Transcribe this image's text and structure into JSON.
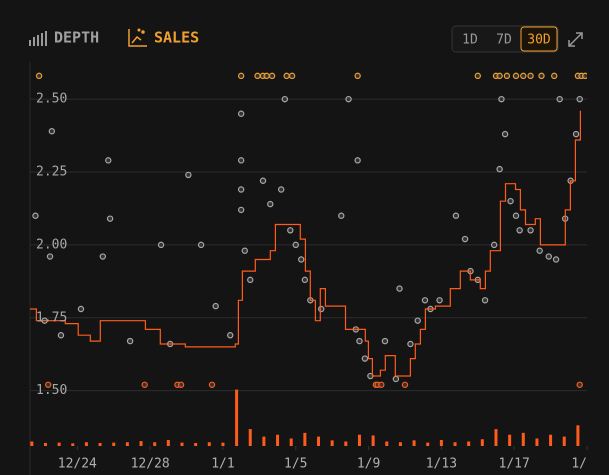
{
  "header": {
    "tabs": [
      "DEPTH",
      "SALES"
    ],
    "active_tab": "SALES",
    "ranges": [
      "1D",
      "7D",
      "30D"
    ],
    "selected_range": "30D"
  },
  "chart_data": {
    "type": "line",
    "xlim": [
      -2.6,
      28
    ],
    "xticks": [
      {
        "value": 0,
        "label": "12/24"
      },
      {
        "value": 4,
        "label": "12/28"
      },
      {
        "value": 8,
        "label": "1/1"
      },
      {
        "value": 12,
        "label": "1/5"
      },
      {
        "value": 16,
        "label": "1/9"
      },
      {
        "value": 20,
        "label": "1/13"
      },
      {
        "value": 24,
        "label": "1/17"
      },
      {
        "value": 28,
        "label": "1/"
      }
    ],
    "ylim": [
      1.31,
      2.6
    ],
    "yticks": [
      {
        "value": 1.5,
        "label": "1.50"
      },
      {
        "value": 1.75,
        "label": "1.75"
      },
      {
        "value": 2.0,
        "label": "2.00"
      },
      {
        "value": 2.25,
        "label": "2.25"
      },
      {
        "value": 2.5,
        "label": "2.50"
      }
    ],
    "y2lim": [
      0,
      100
    ],
    "grid": true,
    "series": [
      {
        "type": "bar",
        "axis": "y2",
        "color": "#ff5b1a",
        "x": [
          -2.5,
          -1.75,
          -1,
          -0.25,
          0.5,
          1.25,
          2,
          2.75,
          3.5,
          4.25,
          5,
          5.75,
          6.5,
          7.25,
          8,
          8.75,
          9.5,
          10.25,
          11,
          11.75,
          12.5,
          13.25,
          14,
          14.75,
          15.5,
          16.25,
          17,
          17.75,
          18.5,
          19.25,
          20,
          20.75,
          21.5,
          22.25,
          23,
          23.75,
          24.5,
          25.25,
          26,
          26.75,
          27.5
        ],
        "values": [
          1.2,
          0.8,
          0.9,
          0.7,
          1.0,
          0.8,
          0.9,
          1.0,
          1.3,
          1.0,
          1.6,
          0.9,
          0.8,
          1.0,
          0.9,
          15,
          4.5,
          2.5,
          3.0,
          2.0,
          3.5,
          2.5,
          1.5,
          1.2,
          3.0,
          2.8,
          1.2,
          1.0,
          1.5,
          0.9,
          1.6,
          1.0,
          1.2,
          1.8,
          4.5,
          3.0,
          3.5,
          2.0,
          3.0,
          2.5,
          5.5
        ]
      },
      {
        "type": "scatter",
        "color": "#a8a8a8",
        "x": [
          -2.3,
          -1.4,
          -1.5,
          1.7,
          1.8,
          1.4,
          4.6,
          6.1,
          6.8,
          7.6,
          9.0,
          9.0,
          9.0,
          9.0,
          9.2,
          9.5,
          10.2,
          10.6,
          11.2,
          11.4,
          11.7,
          12.0,
          12.3,
          12.5,
          12.8,
          13.4,
          14.5,
          14.9,
          15.4,
          15.3,
          15.8,
          16.1,
          16.9,
          17.5,
          17.7,
          18.3,
          18.7,
          19.1,
          19.9,
          20.8,
          21.3,
          21.6,
          22.0,
          22.4,
          22.9,
          23.2,
          23.3,
          23.5,
          23.8,
          24.1,
          24.3,
          24.9,
          25.4,
          25.9,
          26.3,
          26.5,
          26.8,
          27.1,
          27.4,
          27.6,
          -1.8,
          -0.9,
          0.2,
          2.9,
          5.1,
          8.4,
          15.5,
          19.4
        ],
        "values": [
          2.1,
          2.39,
          1.96,
          2.29,
          2.09,
          1.96,
          2.0,
          2.24,
          2.0,
          1.79,
          2.45,
          2.29,
          2.19,
          2.12,
          1.98,
          1.88,
          2.22,
          2.14,
          2.19,
          2.5,
          2.05,
          2.0,
          1.95,
          1.88,
          1.81,
          1.78,
          2.1,
          2.5,
          2.29,
          1.71,
          1.61,
          1.55,
          1.67,
          1.54,
          1.85,
          1.66,
          1.74,
          1.81,
          1.81,
          2.1,
          2.02,
          1.91,
          1.88,
          1.81,
          2.0,
          2.26,
          2.5,
          2.38,
          2.15,
          2.1,
          2.05,
          2.05,
          1.98,
          1.96,
          1.95,
          2.5,
          2.09,
          2.22,
          2.38,
          2.5,
          1.74,
          1.69,
          1.78,
          1.67,
          1.66,
          1.69,
          1.67,
          1.78
        ]
      },
      {
        "type": "scatter",
        "color": "#f0a030",
        "x": [
          -2.1,
          9.0,
          9.9,
          10.2,
          10.4,
          10.7,
          11.5,
          11.8,
          15.4,
          22.0,
          23.0,
          23.2,
          23.6,
          24.1,
          24.5,
          24.9,
          25.5,
          26.2,
          27.5,
          27.7,
          27.9
        ],
        "values": [
          2.58,
          2.58,
          2.58,
          2.58,
          2.58,
          2.58,
          2.58,
          2.58,
          2.58,
          2.58,
          2.58,
          2.58,
          2.58,
          2.58,
          2.58,
          2.58,
          2.58,
          2.58,
          2.58,
          2.58,
          2.58
        ]
      },
      {
        "type": "scatter",
        "color": "#ff5b1a",
        "x": [
          -1.6,
          3.7,
          5.5,
          5.7,
          7.4,
          16.4,
          16.5,
          16.7,
          18.0,
          27.6
        ],
        "values": [
          1.52,
          1.52,
          1.52,
          1.52,
          1.52,
          1.52,
          1.52,
          1.52,
          1.52,
          1.52
        ]
      },
      {
        "type": "step",
        "color": "#ff5b1a",
        "x": [
          -2.6,
          -2.25,
          -0.66,
          0.05,
          0.71,
          1.26,
          3.74,
          4.56,
          5.93,
          8.68,
          8.85,
          9.07,
          9.78,
          10.6,
          10.88,
          12.25,
          12.53,
          12.8,
          13.08,
          13.35,
          13.63,
          14.73,
          15.27,
          15.82,
          15.99,
          16.21,
          16.65,
          16.92,
          17.47,
          18.3,
          18.57,
          18.85,
          19.12,
          19.67,
          20.49,
          21.04,
          21.59,
          22.14,
          22.42,
          22.69,
          23.24,
          23.52,
          24.07,
          24.34,
          24.62,
          25.16,
          25.44,
          26.81,
          27.09,
          27.36,
          27.64
        ],
        "values": [
          1.78,
          1.74,
          1.73,
          1.69,
          1.67,
          1.74,
          1.71,
          1.66,
          1.65,
          1.66,
          1.81,
          1.91,
          1.95,
          1.98,
          2.07,
          2.02,
          1.91,
          1.81,
          1.74,
          1.85,
          1.79,
          1.71,
          1.71,
          1.67,
          1.61,
          1.55,
          1.57,
          1.62,
          1.55,
          1.61,
          1.66,
          1.71,
          1.78,
          1.79,
          1.85,
          1.91,
          1.88,
          1.85,
          1.91,
          1.98,
          2.15,
          2.21,
          2.19,
          2.12,
          2.07,
          2.09,
          2.0,
          2.12,
          2.22,
          2.36,
          2.46
        ]
      }
    ]
  }
}
